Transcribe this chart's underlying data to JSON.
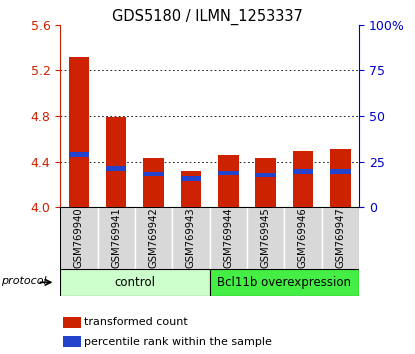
{
  "title": "GDS5180 / ILMN_1253337",
  "samples": [
    "GSM769940",
    "GSM769941",
    "GSM769942",
    "GSM769943",
    "GSM769944",
    "GSM769945",
    "GSM769946",
    "GSM769947"
  ],
  "red_values": [
    5.32,
    4.79,
    4.43,
    4.32,
    4.46,
    4.43,
    4.49,
    4.51
  ],
  "blue_values": [
    4.46,
    4.34,
    4.29,
    4.25,
    4.3,
    4.28,
    4.31,
    4.31
  ],
  "ylim": [
    4.0,
    5.6
  ],
  "yticks_left": [
    4.0,
    4.4,
    4.8,
    5.2,
    5.6
  ],
  "yticks_right": [
    0,
    25,
    50,
    75,
    100
  ],
  "groups": [
    {
      "label": "control",
      "indices": [
        0,
        1,
        2,
        3
      ],
      "color_light": "#ccffcc",
      "color_dark": "#66dd66"
    },
    {
      "label": "Bcl11b overexpression",
      "indices": [
        4,
        5,
        6,
        7
      ],
      "color_light": "#44ee44",
      "color_dark": "#22bb22"
    }
  ],
  "bar_width": 0.55,
  "bar_color_red": "#cc2200",
  "bar_color_blue": "#2244cc",
  "sample_bg_color": "#d8d8d8",
  "legend_red": "transformed count",
  "legend_blue": "percentile rank within the sample",
  "left_color": "#cc2200",
  "right_color": "#0000cc",
  "grid_dotted_vals": [
    4.4,
    4.8,
    5.2
  ],
  "blue_bar_height": 0.04,
  "protocol_label": "protocol"
}
